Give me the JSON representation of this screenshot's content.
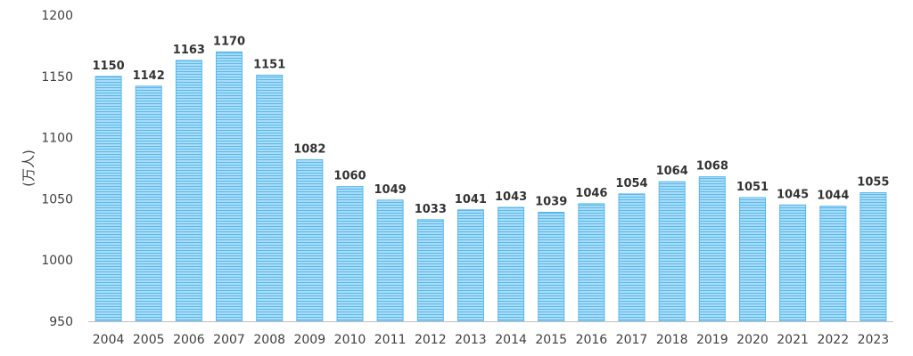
{
  "chart_data": {
    "type": "bar",
    "title": "",
    "xlabel": "",
    "ylabel": "(万人)",
    "ylim": [
      950,
      1200
    ],
    "yticks": [
      950,
      1000,
      1050,
      1100,
      1150,
      1200
    ],
    "grid": false,
    "legend": "none",
    "categories": [
      "2004",
      "2005",
      "2006",
      "2007",
      "2008",
      "2009",
      "2010",
      "2011",
      "2012",
      "2013",
      "2014",
      "2015",
      "2016",
      "2017",
      "2018",
      "2019",
      "2020",
      "2021",
      "2022",
      "2023"
    ],
    "values": [
      1150,
      1142,
      1163,
      1170,
      1151,
      1082,
      1060,
      1049,
      1033,
      1041,
      1043,
      1039,
      1046,
      1054,
      1064,
      1068,
      1051,
      1045,
      1044,
      1055
    ],
    "bar_color": "#5BB8EC",
    "bar_stripe_color": "#A9DCF8"
  }
}
